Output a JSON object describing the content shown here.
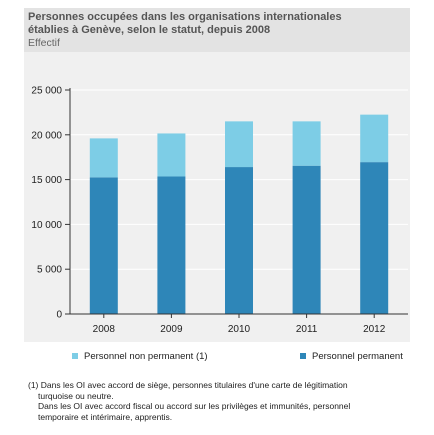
{
  "header": {
    "title_line1": "Personnes occupées dans les organisations internationales",
    "title_line2": "établies à Genève, selon le statut, depuis 2008",
    "subtitle": "Effectif"
  },
  "colors": {
    "permanent": "#2e86b8",
    "non_permanent": "#7dcde6",
    "header_bg": "#e3e3e3",
    "plot_bg": "#f0f0f0",
    "grid": "#ffffff"
  },
  "chart_data": {
    "type": "bar",
    "stacked": true,
    "categories": [
      "2008",
      "2009",
      "2010",
      "2011",
      "2012"
    ],
    "series": [
      {
        "name": "Personnel permanent",
        "values": [
          15250,
          15350,
          16400,
          16550,
          16950
        ]
      },
      {
        "name": "Personnel non permanent (1)",
        "values": [
          4350,
          4800,
          5100,
          4950,
          5300
        ]
      }
    ],
    "y_ticks": [
      "0",
      "5 000",
      "10 000",
      "15 000",
      "20 000",
      "25 000"
    ],
    "ylim": [
      0,
      25000
    ],
    "grid": true,
    "legend_position": "bottom"
  },
  "legend": {
    "non_permanent_label": "Personnel non permanent (1)",
    "permanent_label": "Personnel permanent"
  },
  "footnote": {
    "line1": "(1) Dans les OI  avec accord de siège, personnes titulaires d'une carte de légitimation",
    "line2": "turquoise ou neutre.",
    "line3": "Dans les OI avec accord fiscal ou accord sur les privilèges et immunités, personnel",
    "line4": "temporaire et intérimaire, apprentis."
  }
}
